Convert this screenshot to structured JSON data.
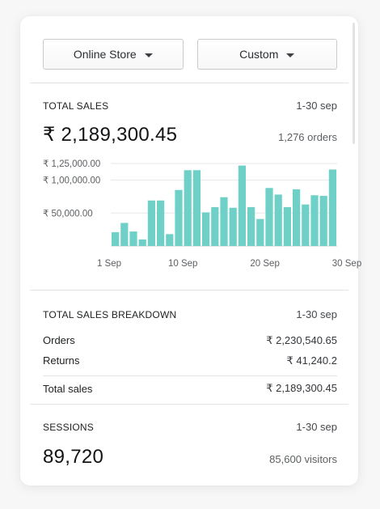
{
  "filters": {
    "channel": "Online Store",
    "range": "Custom"
  },
  "total_sales": {
    "title": "TOTAL SALES",
    "period": "1-30 sep",
    "value": "₹ 2,189,300.45",
    "orders": "1,276 orders"
  },
  "chart_data": {
    "type": "bar",
    "title": "",
    "xlabel": "",
    "ylabel": "",
    "ylim": [
      0,
      135000
    ],
    "y_ticks": [
      {
        "value": 125000,
        "label": "₹ 1,25,000.00"
      },
      {
        "value": 100000,
        "label": "₹ 1,00,000.00"
      },
      {
        "value": 50000,
        "label": "₹ 50,000.00"
      }
    ],
    "x_ticks": [
      {
        "day": 1,
        "label": "1 Sep"
      },
      {
        "day": 10,
        "label": "10 Sep"
      },
      {
        "day": 20,
        "label": "20 Sep"
      },
      {
        "day": 30,
        "label": "30 Sep"
      }
    ],
    "categories": [
      "1",
      "2",
      "3",
      "4",
      "5",
      "6",
      "7",
      "8",
      "9",
      "10",
      "11",
      "12",
      "13",
      "14",
      "15",
      "16",
      "17",
      "18",
      "19",
      "20",
      "21",
      "22",
      "23",
      "24",
      "25",
      "26",
      "27",
      "28",
      "29",
      "30"
    ],
    "values": [
      21000,
      35000,
      22000,
      10000,
      69000,
      69000,
      18000,
      85000,
      115000,
      115000,
      51000,
      59000,
      74000,
      58000,
      122000,
      59000,
      41000,
      88000,
      78000,
      59000,
      86000,
      63000,
      77000,
      76000,
      116000,
      0,
      0,
      0,
      0,
      0
    ],
    "grid": true,
    "color": "#6fd0c8"
  },
  "breakdown": {
    "title": "TOTAL SALES BREAKDOWN",
    "period": "1-30 sep",
    "orders_label": "Orders",
    "orders_value": "₹ 2,230,540.65",
    "returns_label": "Returns",
    "returns_value": "₹ 41,240.2",
    "total_label": "Total sales",
    "total_value": "₹ 2,189,300.45"
  },
  "sessions": {
    "title": "SESSIONS",
    "period": "1-30 sep",
    "value": "89,720",
    "visitors": "85,600 visitors"
  }
}
